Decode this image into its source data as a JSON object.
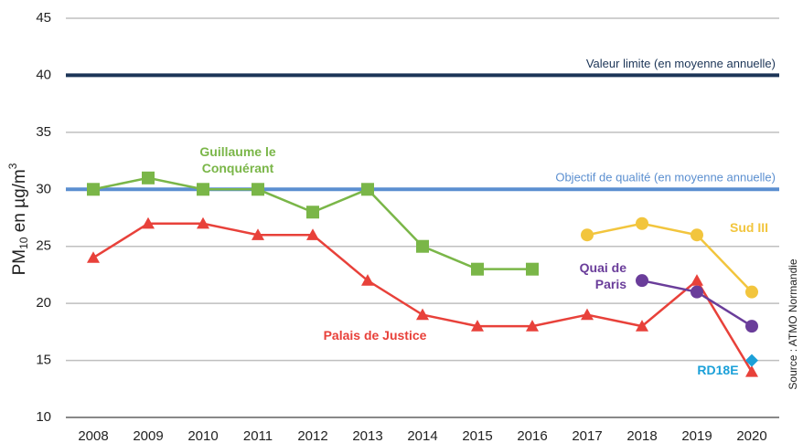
{
  "chart_data": {
    "type": "line",
    "y_label": {
      "main": "PM",
      "sub": "10",
      "rest": " en µg/m",
      "sup": "3"
    },
    "source": "Source : ATMO Normandie",
    "categories": [
      "2008",
      "2009",
      "2010",
      "2011",
      "2012",
      "2013",
      "2014",
      "2015",
      "2016",
      "2017",
      "2018",
      "2019",
      "2020"
    ],
    "series": [
      {
        "name": "Guillaume le Conquérant",
        "color": "#7ab648",
        "marker": "square",
        "values": [
          30,
          31,
          30,
          30,
          28,
          30,
          25,
          23,
          23,
          null,
          null,
          null,
          null
        ]
      },
      {
        "name": "Palais de Justice",
        "color": "#e8413a",
        "marker": "triangle",
        "values": [
          24,
          27,
          27,
          26,
          26,
          22,
          19,
          18,
          18,
          19,
          18,
          22,
          14
        ]
      },
      {
        "name": "Sud III",
        "color": "#f2c53d",
        "marker": "circle",
        "values": [
          null,
          null,
          null,
          null,
          null,
          null,
          null,
          null,
          null,
          26,
          27,
          26,
          21
        ]
      },
      {
        "name": "Quai de Paris",
        "color": "#6a3d9a",
        "marker": "circle",
        "values": [
          null,
          null,
          null,
          null,
          null,
          null,
          null,
          null,
          null,
          null,
          22,
          21,
          18
        ]
      },
      {
        "name": "RD18E",
        "color": "#1ba0d8",
        "marker": "diamond",
        "values": [
          null,
          null,
          null,
          null,
          null,
          null,
          null,
          null,
          null,
          null,
          null,
          null,
          15
        ]
      }
    ],
    "reference_lines": [
      {
        "label": "Valeur limite (en moyenne annuelle)",
        "value": 40,
        "color": "#1c3557"
      },
      {
        "label": "Objectif de qualité (en moyenne annuelle)",
        "value": 30,
        "color": "#5b8fd0"
      }
    ],
    "ylim": [
      10,
      45
    ],
    "yticks": [
      10,
      15,
      20,
      25,
      30,
      35,
      40,
      45
    ],
    "grid": true
  }
}
